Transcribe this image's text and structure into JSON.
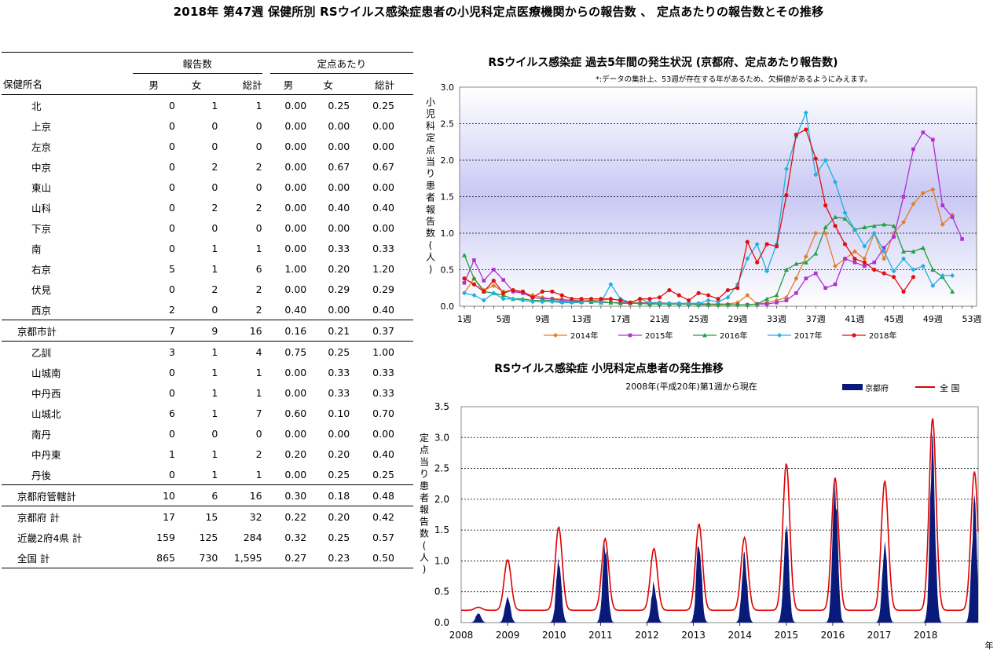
{
  "title": "2018年 第47週 保健所別 RSウイルス感染症患者の小児科定点医療機関からの報告数 、 定点あたりの報告数とその推移",
  "table": {
    "group_headers": [
      "報告数",
      "定点あたり"
    ],
    "columns": [
      "保健所名",
      "男",
      "女",
      "総計",
      "男",
      "女",
      "総計"
    ],
    "rows": [
      {
        "name": "北",
        "values": [
          "0",
          "1",
          "1",
          "0.00",
          "0.25",
          "0.25"
        ],
        "indent": 1
      },
      {
        "name": "上京",
        "values": [
          "0",
          "0",
          "0",
          "0.00",
          "0.00",
          "0.00"
        ],
        "indent": 1
      },
      {
        "name": "左京",
        "values": [
          "0",
          "0",
          "0",
          "0.00",
          "0.00",
          "0.00"
        ],
        "indent": 1
      },
      {
        "name": "中京",
        "values": [
          "0",
          "2",
          "2",
          "0.00",
          "0.67",
          "0.67"
        ],
        "indent": 1
      },
      {
        "name": "東山",
        "values": [
          "0",
          "0",
          "0",
          "0.00",
          "0.00",
          "0.00"
        ],
        "indent": 1
      },
      {
        "name": "山科",
        "values": [
          "0",
          "2",
          "2",
          "0.00",
          "0.40",
          "0.40"
        ],
        "indent": 1
      },
      {
        "name": "下京",
        "values": [
          "0",
          "0",
          "0",
          "0.00",
          "0.00",
          "0.00"
        ],
        "indent": 1
      },
      {
        "name": "南",
        "values": [
          "0",
          "1",
          "1",
          "0.00",
          "0.33",
          "0.33"
        ],
        "indent": 1
      },
      {
        "name": "右京",
        "values": [
          "5",
          "1",
          "6",
          "1.00",
          "0.20",
          "1.20"
        ],
        "indent": 1
      },
      {
        "name": "伏見",
        "values": [
          "0",
          "2",
          "2",
          "0.00",
          "0.29",
          "0.29"
        ],
        "indent": 1
      },
      {
        "name": "西京",
        "values": [
          "2",
          "0",
          "2",
          "0.40",
          "0.00",
          "0.40"
        ],
        "indent": 1
      },
      {
        "name": "京都市計",
        "values": [
          "7",
          "9",
          "16",
          "0.16",
          "0.21",
          "0.37"
        ],
        "indent": 2,
        "line": true
      },
      {
        "name": "乙訓",
        "values": [
          "3",
          "1",
          "4",
          "0.75",
          "0.25",
          "1.00"
        ],
        "indent": 1,
        "line": true
      },
      {
        "name": "山城南",
        "values": [
          "0",
          "1",
          "1",
          "0.00",
          "0.33",
          "0.33"
        ],
        "indent": 1
      },
      {
        "name": "中丹西",
        "values": [
          "0",
          "1",
          "1",
          "0.00",
          "0.33",
          "0.33"
        ],
        "indent": 1
      },
      {
        "name": "山城北",
        "values": [
          "6",
          "1",
          "7",
          "0.60",
          "0.10",
          "0.70"
        ],
        "indent": 1
      },
      {
        "name": "南丹",
        "values": [
          "0",
          "0",
          "0",
          "0.00",
          "0.00",
          "0.00"
        ],
        "indent": 1
      },
      {
        "name": "中丹東",
        "values": [
          "1",
          "1",
          "2",
          "0.20",
          "0.20",
          "0.40"
        ],
        "indent": 1
      },
      {
        "name": "丹後",
        "values": [
          "0",
          "1",
          "1",
          "0.00",
          "0.25",
          "0.25"
        ],
        "indent": 1
      },
      {
        "name": "京都府管轄計",
        "values": [
          "10",
          "6",
          "16",
          "0.30",
          "0.18",
          "0.48"
        ],
        "indent": 2,
        "line": true
      },
      {
        "name": "京都府 計",
        "values": [
          "17",
          "15",
          "32",
          "0.22",
          "0.20",
          "0.42"
        ],
        "indent": 2,
        "line": true
      },
      {
        "name": "近畿2府4県 計",
        "values": [
          "159",
          "125",
          "284",
          "0.32",
          "0.25",
          "0.57"
        ],
        "indent": 2
      },
      {
        "name": "全国 計",
        "values": [
          "865",
          "730",
          "1,595",
          "0.27",
          "0.23",
          "0.50"
        ],
        "indent": 2,
        "bottom": true
      }
    ]
  },
  "chart_data": [
    {
      "type": "line",
      "title": "RSウイルス感染症 過去5年間の発生状況 (京都府、定点あたり報告数)",
      "subtitle": "*:データの集計上、53週が存在する年があるため、欠損値があるようにみえます。",
      "ylabel": "小児科定点当り患者報告数(人)",
      "ylim": [
        0,
        3.0
      ],
      "yticks": [
        "0.0",
        "0.5",
        "1.0",
        "1.5",
        "2.0",
        "2.5",
        "3.0"
      ],
      "x_range": [
        1,
        53
      ],
      "xtick_labels": [
        "1週",
        "5週",
        "9週",
        "13週",
        "17週",
        "21週",
        "25週",
        "29週",
        "33週",
        "37週",
        "41週",
        "45週",
        "49週",
        "53週"
      ],
      "legend_position": "bottom",
      "series": [
        {
          "name": "2014年",
          "color": "#e07f2a",
          "marker": "diamond",
          "values": [
            0.18,
            0.38,
            0.22,
            0.28,
            0.2,
            0.22,
            0.18,
            0.15,
            0.12,
            0.1,
            0.1,
            0.08,
            0.08,
            0.08,
            0.08,
            0.1,
            0.08,
            0.05,
            0.05,
            0.05,
            0.05,
            0.04,
            0.04,
            0.04,
            0.04,
            0.03,
            0.03,
            0.03,
            0.05,
            0.15,
            0.03,
            0.05,
            0.08,
            0.12,
            0.38,
            0.68,
            1.0,
            1.0,
            0.55,
            0.65,
            0.75,
            0.65,
            1.0,
            0.65,
            1.0,
            1.15,
            1.4,
            1.55,
            1.6,
            1.12,
            1.25,
            null,
            null
          ]
        },
        {
          "name": "2015年",
          "color": "#b030d0",
          "marker": "square",
          "values": [
            0.32,
            0.63,
            0.35,
            0.5,
            0.36,
            0.2,
            0.18,
            0.12,
            0.1,
            0.1,
            0.08,
            0.08,
            0.06,
            0.06,
            0.06,
            0.05,
            0.05,
            0.04,
            0.04,
            0.04,
            0.04,
            0.03,
            0.03,
            0.03,
            0.03,
            0.02,
            0.02,
            0.02,
            0.02,
            0.02,
            0.03,
            0.03,
            0.05,
            0.08,
            0.18,
            0.38,
            0.45,
            0.25,
            0.3,
            0.65,
            0.6,
            0.55,
            0.6,
            0.8,
            0.95,
            1.5,
            2.15,
            2.38,
            2.28,
            1.38,
            1.22,
            0.92,
            null
          ]
        },
        {
          "name": "2016年",
          "color": "#20a040",
          "marker": "triangle",
          "values": [
            0.7,
            0.38,
            0.2,
            0.18,
            0.15,
            0.1,
            0.1,
            0.08,
            0.08,
            0.08,
            0.06,
            0.06,
            0.06,
            0.06,
            0.05,
            0.05,
            0.04,
            0.04,
            0.04,
            0.03,
            0.03,
            0.03,
            0.03,
            0.03,
            0.02,
            0.02,
            0.02,
            0.02,
            0.02,
            0.02,
            0.03,
            0.1,
            0.15,
            0.5,
            0.58,
            0.6,
            0.72,
            1.08,
            1.22,
            1.2,
            1.05,
            1.08,
            1.1,
            1.12,
            1.1,
            0.75,
            0.75,
            0.8,
            0.5,
            0.4,
            0.2,
            null,
            null
          ]
        },
        {
          "name": "2017年",
          "color": "#20b0e0",
          "marker": "diamond",
          "values": [
            0.18,
            0.15,
            0.08,
            0.18,
            0.1,
            0.1,
            0.08,
            0.06,
            0.06,
            0.06,
            0.05,
            0.05,
            0.05,
            0.08,
            0.05,
            0.3,
            0.1,
            0.05,
            0.1,
            0.05,
            0.04,
            0.04,
            0.04,
            0.04,
            0.04,
            0.08,
            0.06,
            0.12,
            0.3,
            0.65,
            0.85,
            0.48,
            0.85,
            1.88,
            2.32,
            2.65,
            1.8,
            2.0,
            1.7,
            1.28,
            1.05,
            0.82,
            1.0,
            0.75,
            0.48,
            0.65,
            0.5,
            0.55,
            0.28,
            0.42,
            0.42,
            null,
            null
          ]
        },
        {
          "name": "2018年",
          "color": "#e01010",
          "marker": "circle",
          "values": [
            0.38,
            0.3,
            0.2,
            0.35,
            0.18,
            0.22,
            0.2,
            0.12,
            0.2,
            0.2,
            0.15,
            0.1,
            0.1,
            0.1,
            0.1,
            0.1,
            0.08,
            0.05,
            0.1,
            0.1,
            0.12,
            0.22,
            0.15,
            0.08,
            0.18,
            0.15,
            0.1,
            0.22,
            0.25,
            0.88,
            0.6,
            0.85,
            0.82,
            1.52,
            2.35,
            2.42,
            2.02,
            1.38,
            1.1,
            0.85,
            0.65,
            0.6,
            0.5,
            0.45,
            0.4,
            0.2,
            0.4,
            null,
            null,
            null,
            null,
            null,
            null
          ]
        }
      ]
    },
    {
      "type": "area",
      "title": "RSウイルス感染症 小児科定点患者の発生推移",
      "subtitle": "2008年(平成20年)第1週から現在",
      "ylabel": "定点当り患者報告数(人)",
      "xlabel": "年",
      "ylim": [
        0,
        3.5
      ],
      "yticks": [
        "0.0",
        "0.5",
        "1.0",
        "1.5",
        "2.0",
        "2.5",
        "3.0",
        "3.5"
      ],
      "years": [
        "2008",
        "2009",
        "2010",
        "2011",
        "2012",
        "2013",
        "2014",
        "2015",
        "2016",
        "2017",
        "2018"
      ],
      "legend_position": "top-right",
      "series": [
        {
          "name": "京都府",
          "color": "#0a1a7a",
          "peaks": [
            [
              0.37,
              0.15
            ],
            [
              1.0,
              0.45
            ],
            [
              2.1,
              0.98
            ],
            [
              3.1,
              1.25
            ],
            [
              4.15,
              0.62
            ],
            [
              5.12,
              1.32
            ],
            [
              6.1,
              1.1
            ],
            [
              7.0,
              1.6
            ],
            [
              8.05,
              2.22
            ],
            [
              9.12,
              1.2
            ],
            [
              10.15,
              2.85
            ],
            [
              11.05,
              2.0
            ]
          ]
        },
        {
          "name": "全 国",
          "color": "#e00000",
          "peaks": [
            [
              0.37,
              0.25
            ],
            [
              1.0,
              1.02
            ],
            [
              2.1,
              1.55
            ],
            [
              3.1,
              1.36
            ],
            [
              4.15,
              1.2
            ],
            [
              5.12,
              1.6
            ],
            [
              6.1,
              1.38
            ],
            [
              7.0,
              2.58
            ],
            [
              8.05,
              2.35
            ],
            [
              9.12,
              2.3
            ],
            [
              10.15,
              3.32
            ],
            [
              11.05,
              2.45
            ]
          ]
        }
      ]
    }
  ]
}
